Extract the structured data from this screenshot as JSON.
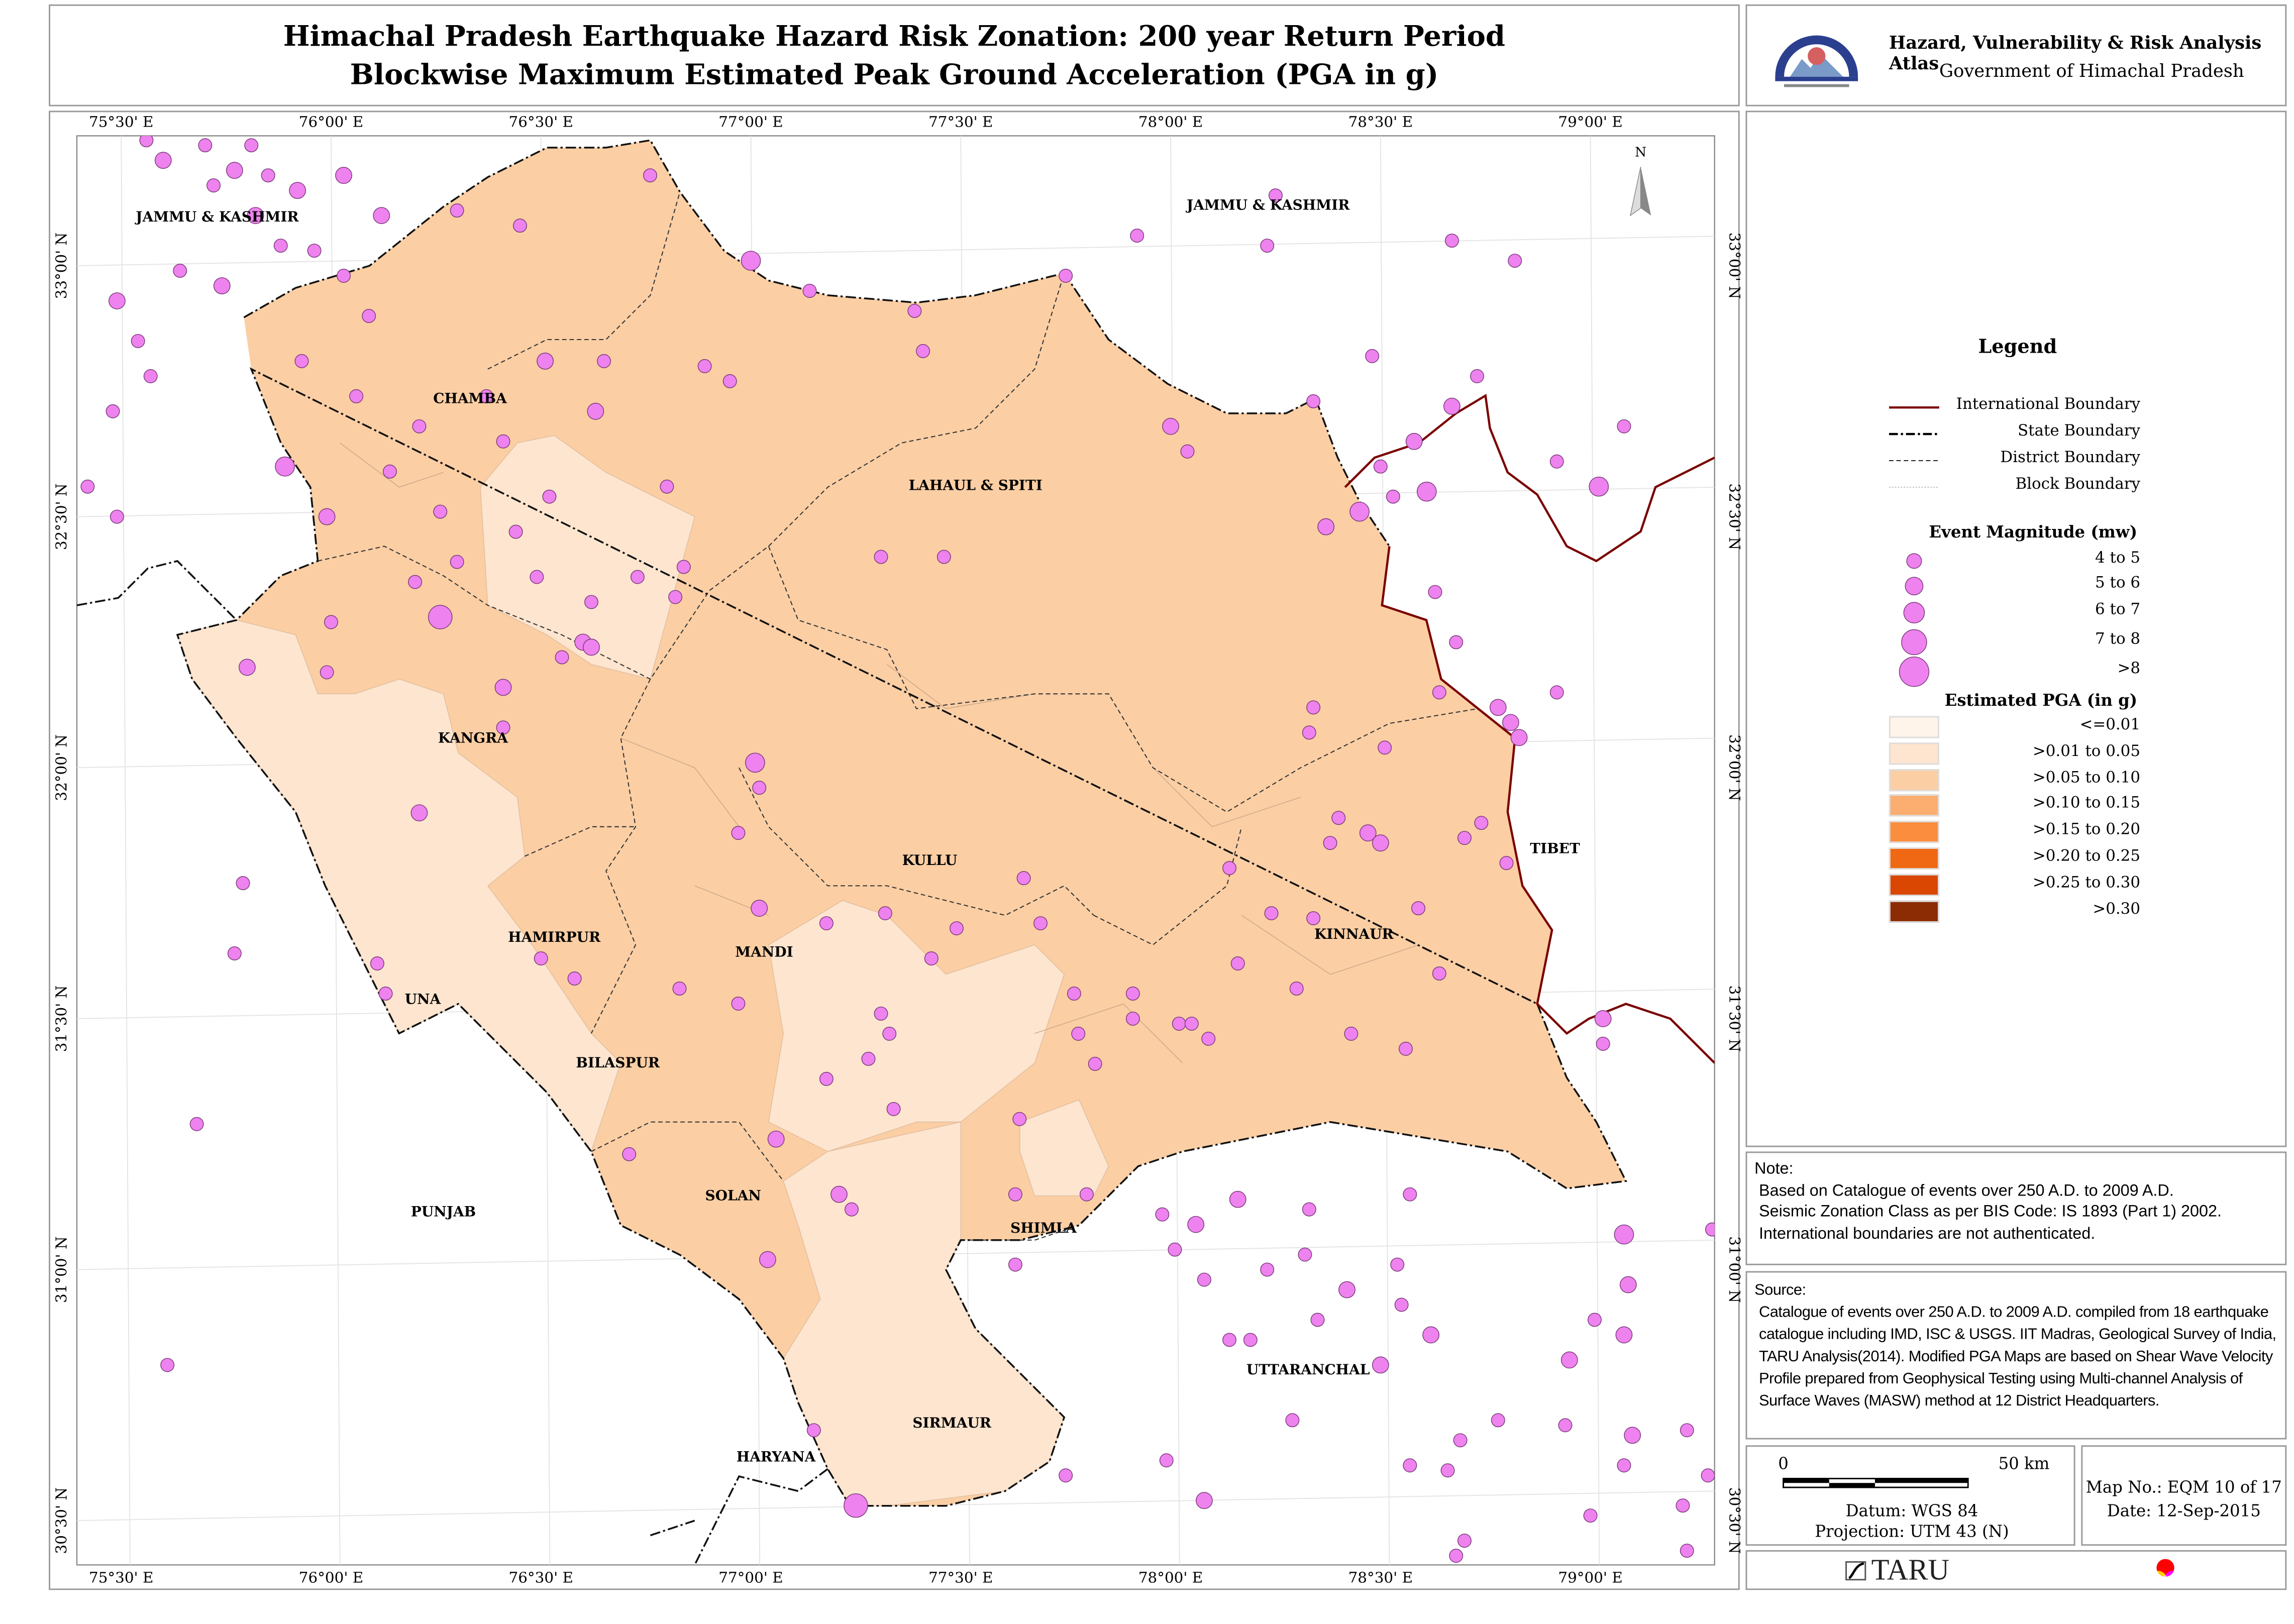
{
  "title": {
    "line1": "Himachal Pradesh Earthquake Hazard Risk Zonation: 200 year Return Period",
    "line2": "Blockwise Maximum Estimated Peak Ground Acceleration (PGA in g)"
  },
  "header": {
    "atlas": "Hazard, Vulnerability & Risk Analysis Atlas",
    "government": "Government of Himachal Pradesh"
  },
  "map": {
    "lon_ticks": [
      "75°30' E",
      "76°00' E",
      "76°30' E",
      "77°00' E",
      "77°30' E",
      "78°00' E",
      "78°30' E",
      "79°00' E"
    ],
    "lat_ticks": [
      "33°00' N",
      "32°30' N",
      "32°00' N",
      "31°30' N",
      "31°00' N",
      "30°30' N"
    ],
    "north_label": "N",
    "labels": {
      "jk_west": "JAMMU & KASHMIR",
      "jk_east": "JAMMU & KASHMIR",
      "chamba": "CHAMBA",
      "lahaul": "LAHAUL & SPITI",
      "kangra": "KANGRA",
      "kullu": "KULLU",
      "kinnaur": "KINNAUR",
      "hamirpur": "HAMIRPUR",
      "mandi": "MANDI",
      "una": "UNA",
      "bilaspur": "BILASPUR",
      "solan": "SOLAN",
      "shimla": "SHIMLA",
      "sirmaur": "SIRMAUR",
      "punjab": "PUNJAB",
      "uttaranchal": "UTTARANCHAL",
      "haryana": "HARYANA",
      "tibet": "TIBET"
    },
    "colors": {
      "event": "#ee82ee",
      "pga_le001": "#fef4ea",
      "pga_001_005": "#fde5cf",
      "pga_005_010": "#fbcea4",
      "intl": "#7a0000"
    },
    "events_lon_lat_class": [
      [
        75.6,
        33.21,
        1
      ],
      [
        75.56,
        33.25,
        0
      ],
      [
        75.7,
        33.24,
        0
      ],
      [
        75.77,
        33.19,
        1
      ],
      [
        75.81,
        33.24,
        0
      ],
      [
        75.72,
        33.16,
        0
      ],
      [
        75.85,
        33.18,
        0
      ],
      [
        75.92,
        33.15,
        1
      ],
      [
        76.03,
        33.18,
        1
      ],
      [
        76.12,
        33.1,
        1
      ],
      [
        75.82,
        33.1,
        1
      ],
      [
        75.88,
        33.04,
        0
      ],
      [
        75.74,
        32.96,
        1
      ],
      [
        75.64,
        32.99,
        0
      ],
      [
        75.49,
        32.93,
        1
      ],
      [
        75.54,
        32.85,
        0
      ],
      [
        75.57,
        32.78,
        0
      ],
      [
        75.48,
        32.71,
        0
      ],
      [
        75.42,
        32.56,
        0
      ],
      [
        75.49,
        32.5,
        0
      ],
      [
        75.96,
        33.03,
        0
      ],
      [
        76.03,
        32.98,
        0
      ],
      [
        76.09,
        32.9,
        0
      ],
      [
        75.93,
        32.81,
        0
      ],
      [
        76.06,
        32.74,
        0
      ],
      [
        75.89,
        32.6,
        2
      ],
      [
        75.99,
        32.5,
        1
      ],
      [
        76.0,
        32.29,
        0
      ],
      [
        76.26,
        32.3,
        3
      ],
      [
        76.3,
        32.41,
        0
      ],
      [
        76.2,
        32.37,
        0
      ],
      [
        76.26,
        32.51,
        0
      ],
      [
        76.14,
        32.59,
        0
      ],
      [
        76.21,
        32.68,
        0
      ],
      [
        76.37,
        32.74,
        0
      ],
      [
        76.41,
        32.65,
        0
      ],
      [
        76.51,
        32.81,
        1
      ],
      [
        76.63,
        32.71,
        1
      ],
      [
        76.65,
        32.81,
        0
      ],
      [
        76.45,
        33.08,
        0
      ],
      [
        76.3,
        33.11,
        0
      ],
      [
        76.76,
        33.18,
        0
      ],
      [
        77.0,
        33.01,
        2
      ],
      [
        77.14,
        32.95,
        0
      ],
      [
        77.39,
        32.91,
        0
      ],
      [
        77.41,
        32.83,
        0
      ],
      [
        76.89,
        32.8,
        0
      ],
      [
        76.95,
        32.77,
        0
      ],
      [
        77.75,
        32.98,
        0
      ],
      [
        77.92,
        33.06,
        0
      ],
      [
        78.25,
        33.14,
        0
      ],
      [
        78.23,
        33.04,
        0
      ],
      [
        78.67,
        33.05,
        0
      ],
      [
        78.82,
        33.01,
        0
      ],
      [
        78.48,
        32.82,
        0
      ],
      [
        78.34,
        32.73,
        0
      ],
      [
        78.67,
        32.72,
        1
      ],
      [
        78.73,
        32.78,
        0
      ],
      [
        79.08,
        32.68,
        0
      ],
      [
        78.92,
        32.61,
        0
      ],
      [
        79.02,
        32.56,
        2
      ],
      [
        78.61,
        32.55,
        2
      ],
      [
        78.53,
        32.54,
        0
      ],
      [
        78.58,
        32.65,
        1
      ],
      [
        78.45,
        32.51,
        2
      ],
      [
        78.37,
        32.48,
        1
      ],
      [
        78.5,
        32.6,
        0
      ],
      [
        78.63,
        32.35,
        0
      ],
      [
        78.68,
        32.25,
        0
      ],
      [
        78.64,
        32.15,
        0
      ],
      [
        78.78,
        32.12,
        1
      ],
      [
        78.81,
        32.09,
        1
      ],
      [
        78.83,
        32.06,
        1
      ],
      [
        78.92,
        32.15,
        0
      ],
      [
        78.34,
        32.12,
        0
      ],
      [
        78.33,
        32.07,
        0
      ],
      [
        78.51,
        32.04,
        0
      ],
      [
        78.4,
        31.9,
        0
      ],
      [
        78.47,
        31.87,
        1
      ],
      [
        78.5,
        31.85,
        1
      ],
      [
        78.38,
        31.85,
        0
      ],
      [
        78.7,
        31.86,
        0
      ],
      [
        78.74,
        31.89,
        0
      ],
      [
        78.8,
        31.81,
        0
      ],
      [
        78.14,
        31.8,
        0
      ],
      [
        78.24,
        31.71,
        0
      ],
      [
        78.34,
        31.7,
        0
      ],
      [
        78.59,
        31.72,
        0
      ],
      [
        78.64,
        31.59,
        0
      ],
      [
        78.3,
        31.56,
        0
      ],
      [
        78.43,
        31.47,
        0
      ],
      [
        78.56,
        31.44,
        0
      ],
      [
        78.16,
        31.61,
        0
      ],
      [
        78.02,
        31.49,
        0
      ],
      [
        78.09,
        31.46,
        0
      ],
      [
        78.0,
        32.68,
        1
      ],
      [
        78.04,
        32.63,
        0
      ],
      [
        77.31,
        32.42,
        0
      ],
      [
        77.46,
        32.42,
        0
      ],
      [
        76.82,
        32.34,
        0
      ],
      [
        76.84,
        32.4,
        0
      ],
      [
        76.73,
        32.38,
        0
      ],
      [
        76.62,
        32.33,
        0
      ],
      [
        76.49,
        32.38,
        0
      ],
      [
        76.6,
        32.25,
        1
      ],
      [
        76.62,
        32.24,
        1
      ],
      [
        76.55,
        32.22,
        0
      ],
      [
        76.8,
        32.56,
        0
      ],
      [
        76.52,
        32.54,
        0
      ],
      [
        76.44,
        32.47,
        0
      ],
      [
        76.41,
        32.16,
        1
      ],
      [
        76.41,
        32.08,
        0
      ],
      [
        75.8,
        32.2,
        1
      ],
      [
        75.99,
        32.19,
        0
      ],
      [
        76.21,
        31.91,
        1
      ],
      [
        77.01,
        32.01,
        2
      ],
      [
        77.02,
        31.96,
        0
      ],
      [
        76.97,
        31.87,
        0
      ],
      [
        77.02,
        31.72,
        1
      ],
      [
        77.18,
        31.69,
        0
      ],
      [
        77.32,
        31.71,
        0
      ],
      [
        77.43,
        31.62,
        0
      ],
      [
        77.49,
        31.68,
        0
      ],
      [
        77.65,
        31.78,
        0
      ],
      [
        77.69,
        31.69,
        0
      ],
      [
        77.77,
        31.55,
        0
      ],
      [
        77.91,
        31.55,
        0
      ],
      [
        77.91,
        31.5,
        0
      ],
      [
        78.05,
        31.49,
        0
      ],
      [
        77.78,
        31.47,
        0
      ],
      [
        77.82,
        31.41,
        0
      ],
      [
        77.31,
        31.51,
        0
      ],
      [
        77.33,
        31.47,
        0
      ],
      [
        77.28,
        31.42,
        0
      ],
      [
        77.18,
        31.38,
        0
      ],
      [
        77.34,
        31.32,
        0
      ],
      [
        77.64,
        31.3,
        0
      ],
      [
        77.06,
        31.26,
        1
      ],
      [
        76.71,
        31.23,
        0
      ],
      [
        77.21,
        31.15,
        1
      ],
      [
        77.24,
        31.12,
        0
      ],
      [
        77.63,
        31.15,
        0
      ],
      [
        77.8,
        31.15,
        0
      ],
      [
        78.16,
        31.14,
        1
      ],
      [
        78.06,
        31.09,
        1
      ],
      [
        77.98,
        31.11,
        0
      ],
      [
        78.01,
        31.04,
        0
      ],
      [
        78.33,
        31.12,
        0
      ],
      [
        78.32,
        31.03,
        0
      ],
      [
        78.57,
        31.15,
        0
      ],
      [
        78.54,
        31.01,
        0
      ],
      [
        78.42,
        30.96,
        1
      ],
      [
        78.23,
        31.0,
        0
      ],
      [
        78.08,
        30.98,
        0
      ],
      [
        78.35,
        30.9,
        0
      ],
      [
        78.55,
        30.93,
        0
      ],
      [
        78.62,
        30.87,
        1
      ],
      [
        78.14,
        30.86,
        0
      ],
      [
        78.19,
        30.86,
        0
      ],
      [
        78.5,
        30.81,
        1
      ],
      [
        78.29,
        30.7,
        0
      ],
      [
        78.95,
        30.82,
        1
      ],
      [
        79.08,
        30.87,
        1
      ],
      [
        79.01,
        30.9,
        0
      ],
      [
        79.09,
        30.97,
        1
      ],
      [
        79.08,
        31.07,
        2
      ],
      [
        79.29,
        31.08,
        0
      ],
      [
        79.03,
        31.5,
        1
      ],
      [
        79.03,
        31.45,
        0
      ],
      [
        78.78,
        30.7,
        0
      ],
      [
        78.94,
        30.69,
        0
      ],
      [
        79.1,
        30.67,
        1
      ],
      [
        79.23,
        30.68,
        0
      ],
      [
        78.69,
        30.66,
        0
      ],
      [
        78.57,
        30.61,
        0
      ],
      [
        78.66,
        30.6,
        0
      ],
      [
        79.08,
        30.61,
        0
      ],
      [
        79.0,
        30.51,
        0
      ],
      [
        79.22,
        30.53,
        0
      ],
      [
        79.28,
        30.59,
        0
      ],
      [
        78.7,
        30.46,
        0
      ],
      [
        78.68,
        30.43,
        0
      ],
      [
        79.23,
        30.44,
        0
      ],
      [
        78.08,
        30.54,
        1
      ],
      [
        77.99,
        30.62,
        0
      ],
      [
        77.75,
        30.59,
        0
      ],
      [
        77.25,
        30.53,
        3
      ],
      [
        77.15,
        30.68,
        0
      ],
      [
        77.04,
        31.02,
        1
      ],
      [
        77.63,
        31.01,
        0
      ],
      [
        75.68,
        31.29,
        0
      ],
      [
        75.61,
        30.81,
        0
      ],
      [
        75.79,
        31.77,
        0
      ],
      [
        75.77,
        31.63,
        0
      ],
      [
        76.13,
        31.55,
        0
      ],
      [
        76.11,
        31.61,
        0
      ],
      [
        76.5,
        31.62,
        0
      ],
      [
        76.58,
        31.58,
        0
      ],
      [
        76.83,
        31.56,
        0
      ],
      [
        76.97,
        31.53,
        0
      ]
    ]
  },
  "legend": {
    "title": "Legend",
    "lines": [
      {
        "label": "International Boundary",
        "style": "intl"
      },
      {
        "label": "State Boundary",
        "style": "state"
      },
      {
        "label": "District Boundary",
        "style": "district"
      },
      {
        "label": "Block Boundary",
        "style": "block"
      }
    ],
    "magnitude_title": "Event Magnitude (mw)",
    "magnitudes": [
      "4 to 5",
      "5 to 6",
      "6 to 7",
      "7 to 8",
      ">8"
    ],
    "pga_title": "Estimated PGA (in g)",
    "pga": [
      {
        "label": "<=0.01",
        "color": "#fef4ea"
      },
      {
        "label": ">0.01 to 0.05",
        "color": "#fde5cf"
      },
      {
        "label": ">0.05 to 0.10",
        "color": "#fbcea4"
      },
      {
        "label": ">0.10 to 0.15",
        "color": "#fbae6f"
      },
      {
        "label": ">0.15 to 0.20",
        "color": "#fb8d3e"
      },
      {
        "label": ">0.20 to 0.25",
        "color": "#f06814"
      },
      {
        "label": ">0.25 to 0.30",
        "color": "#d94703"
      },
      {
        "label": ">0.30",
        "color": "#8c2c04"
      }
    ]
  },
  "note": {
    "heading": "Note:",
    "lines": [
      "Based on Catalogue of events over 250 A.D. to 2009 A.D.",
      "Seismic Zonation Class as per BIS Code: IS 1893 (Part 1) 2002.",
      "International boundaries are not authenticated."
    ]
  },
  "source": {
    "heading": "Source:",
    "text": "Catalogue of events over 250 A.D. to 2009 A.D. compiled from 18 earthquake catalogue including IMD, ISC & USGS. IIT Madras, Geological Survey of India, TARU Analysis(2014). Modified PGA Maps are based on Shear Wave Velocity Profile prepared from Geophysical Testing using Multi-channel Analysis of Surface Waves (MASW) method at 12 District Headquarters."
  },
  "scale": {
    "zero": "0",
    "end": "50 km",
    "datum": "Datum: WGS 84",
    "projection": "Projection: UTM 43 (N)"
  },
  "mapinfo": {
    "map_no": "Map No.: EQM 10 of 17",
    "date": "Date: 12-Sep-2015"
  },
  "logos": {
    "taru": "TARU"
  }
}
